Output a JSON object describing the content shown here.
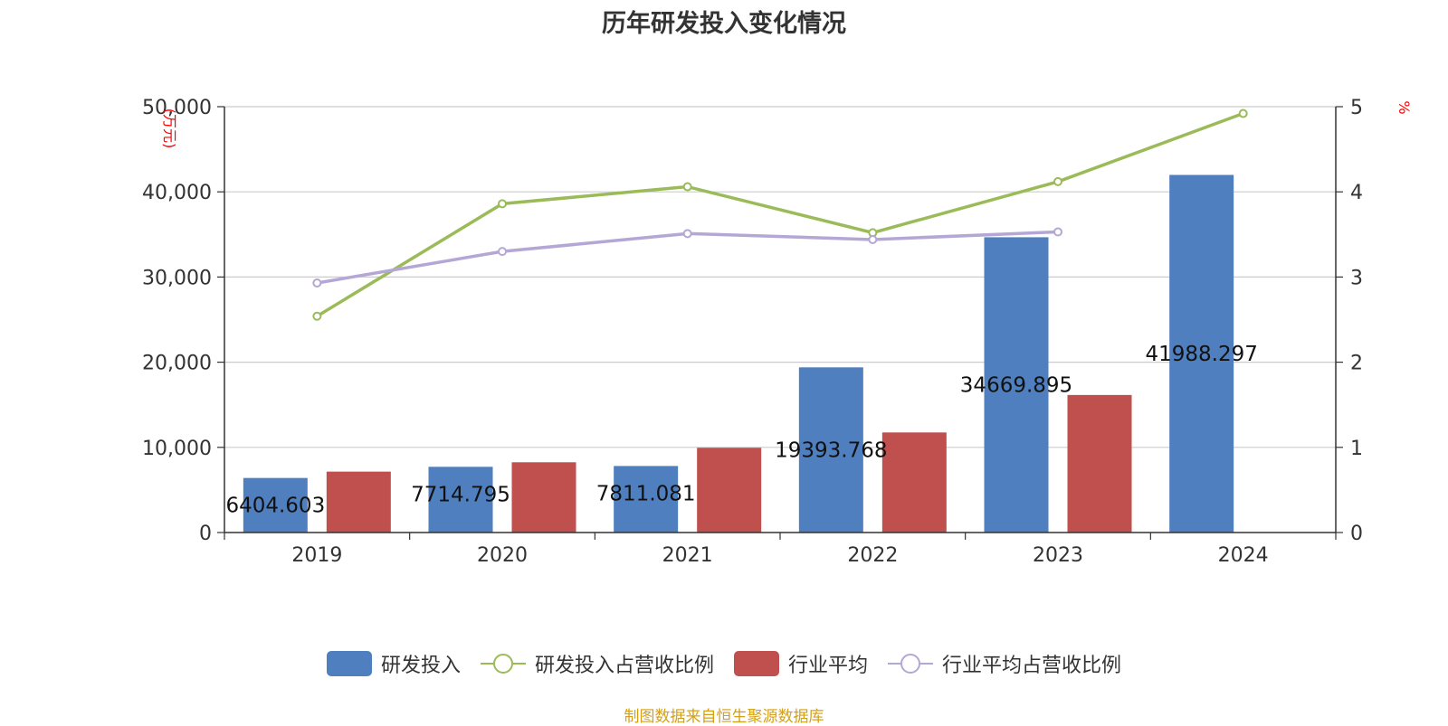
{
  "chart_data": {
    "type": "bar",
    "title": "历年研发投入变化情况",
    "categories": [
      "2019",
      "2020",
      "2021",
      "2022",
      "2023",
      "2024"
    ],
    "y_left": {
      "unit": "万元",
      "ylim": [
        0,
        50000
      ],
      "ticks": [
        "0",
        "10,000",
        "20,000",
        "30,000",
        "40,000",
        "50,000"
      ]
    },
    "y_right": {
      "unit": "%",
      "ylim": [
        0,
        5
      ],
      "ticks": [
        "0",
        "1",
        "2",
        "3",
        "4",
        "5"
      ]
    },
    "grid": true,
    "legend_position": "bottom",
    "bar_series": [
      {
        "name": "研发投入",
        "color": "#4f7fbe",
        "values": [
          6404.603,
          7714.795,
          7811.081,
          19393.768,
          34669.895,
          41988.297
        ],
        "labels": [
          "6404.603",
          "7714.795",
          "7811.081",
          "19393.768",
          "34669.895",
          "41988.297"
        ]
      },
      {
        "name": "行业平均",
        "color": "#c0504d",
        "values": [
          7150,
          8250,
          9950,
          11750,
          16150,
          null
        ]
      }
    ],
    "line_series": [
      {
        "name": "研发投入占营收比例",
        "color": "#9bbb59",
        "values": [
          2.54,
          3.86,
          4.06,
          3.52,
          4.12,
          4.92
        ]
      },
      {
        "name": "行业平均占营收比例",
        "color": "#b4a7d6",
        "values": [
          2.93,
          3.3,
          3.51,
          3.44,
          3.53,
          null
        ]
      }
    ]
  },
  "source_note": {
    "text": "制图数据来自恒生聚源数据库",
    "color": "#d4a017"
  },
  "axis_unit_color": "#ff0000"
}
